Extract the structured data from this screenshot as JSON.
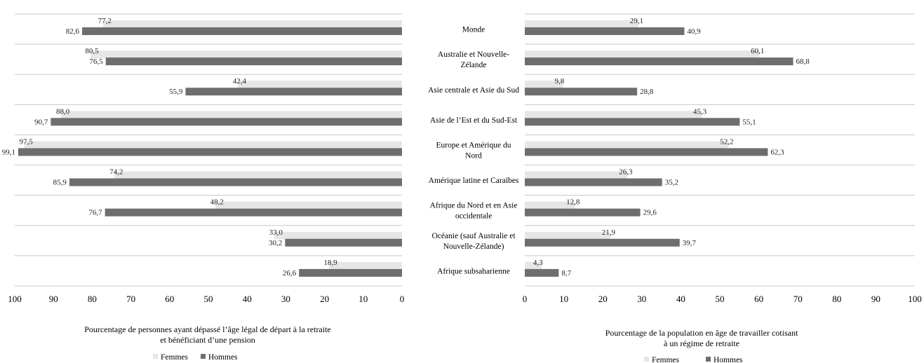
{
  "chart_data": {
    "type": "bar",
    "orientation": "horizontal",
    "layout": "butterfly",
    "categories": [
      [
        "Monde"
      ],
      [
        "Australie et Nouvelle-",
        "Zélande"
      ],
      [
        "Asie centrale et Asie du Sud"
      ],
      [
        "Asie de l’Est et du Sud-Est"
      ],
      [
        "Europe et Amérique du",
        "Nord"
      ],
      [
        "Amérique latine et Caraïbes"
      ],
      [
        "Afrique du Nord et en Asie",
        "occidentale"
      ],
      [
        "Océanie (sauf Australie et",
        "Nouvelle-Zélande)"
      ],
      [
        "Afrique subsaharienne"
      ]
    ],
    "colors": {
      "femmes": "#e6e6e6",
      "hommes": "#6e6e6e",
      "grid": "#c8c8c8"
    },
    "panels": [
      {
        "side": "left",
        "xlim": [
          0,
          100
        ],
        "reversed": true,
        "ticks": [
          "0",
          "10",
          "20",
          "30",
          "40",
          "50",
          "60",
          "70",
          "80",
          "90",
          "100"
        ],
        "xlabel": [
          "Pourcentage de personnes ayant dépassé l’âge légal de départ à la retraite",
          "et bénéficiant d’une pension"
        ],
        "legend": [
          "Femmes",
          "Hommes"
        ],
        "series": [
          {
            "name": "Femmes",
            "values": [
              77.2,
              80.5,
              42.4,
              88.0,
              97.5,
              74.2,
              48.2,
              33.0,
              18.9
            ],
            "labels": [
              "77,2",
              "80,5",
              "42,4",
              "88,0",
              "97,5",
              "74,2",
              "48,2",
              "33,0",
              "18,9"
            ]
          },
          {
            "name": "Hommes",
            "values": [
              82.6,
              76.5,
              55.9,
              90.7,
              99.1,
              85.9,
              76.7,
              30.2,
              26.6
            ],
            "labels": [
              "82,6",
              "76,5",
              "55,9",
              "90,7",
              "99,1",
              "85,9",
              "76,7",
              "30,2",
              "26,6"
            ]
          }
        ]
      },
      {
        "side": "right",
        "xlim": [
          0,
          100
        ],
        "reversed": false,
        "ticks": [
          "0",
          "10",
          "20",
          "30",
          "40",
          "50",
          "60",
          "70",
          "80",
          "90",
          "100"
        ],
        "xlabel": [
          "Pourcentage de la population en âge de travailler cotisant",
          "à un régime de retraite"
        ],
        "legend": [
          "Femmes",
          "Hommes"
        ],
        "series": [
          {
            "name": "Femmes",
            "values": [
              29.1,
              60.1,
              9.8,
              45.3,
              52.2,
              26.3,
              12.8,
              21.9,
              4.3
            ],
            "labels": [
              "29,1",
              "60,1",
              "9,8",
              "45,3",
              "52,2",
              "26,3",
              "12,8",
              "21,9",
              "4,3"
            ]
          },
          {
            "name": "Hommes",
            "values": [
              40.9,
              68.8,
              28.8,
              55.1,
              62.3,
              35.2,
              29.6,
              39.7,
              8.7
            ],
            "labels": [
              "40,9",
              "68,8",
              "28,8",
              "55,1",
              "62,3",
              "35,2",
              "29,6",
              "39,7",
              "8,7"
            ]
          }
        ]
      }
    ]
  }
}
